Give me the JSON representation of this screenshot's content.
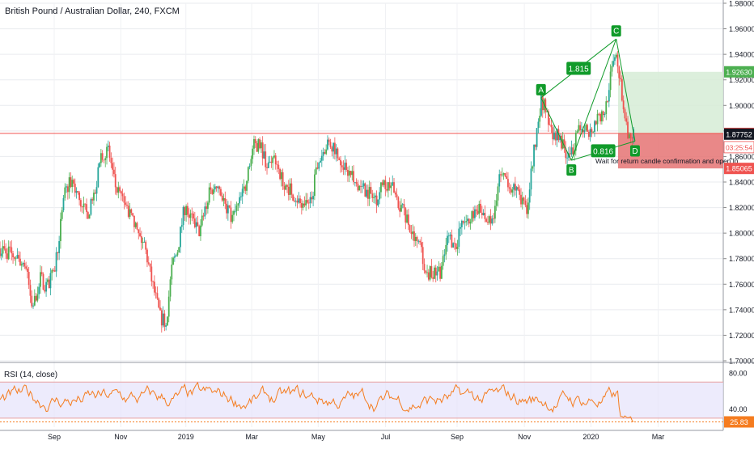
{
  "header": {
    "title": "British Pound / Australian Dollar, 240, FXCM"
  },
  "rsi": {
    "title": "RSI (14, close)",
    "upper": 70,
    "lower": 30,
    "last": 25.83,
    "axis_ticks": [
      "80.00",
      "40.00"
    ],
    "last_label": "25.83",
    "colors": {
      "line": "#f57c1f",
      "band": "#e6e3fb",
      "bound": "#e8a0a0"
    }
  },
  "chart_data": [
    {
      "type": "candlestick",
      "title": "British Pound / Australian Dollar, 240, FXCM",
      "x_ticks": [
        "Sep",
        "Nov",
        "2019",
        "Mar",
        "May",
        "Jul",
        "Sep",
        "Nov",
        "2020",
        "Mar"
      ],
      "y_ticks": [
        "1.98000",
        "1.96000",
        "1.94000",
        "1.92000",
        "1.90000",
        "1.88000",
        "1.86000",
        "1.84000",
        "1.82000",
        "1.80000",
        "1.78000",
        "1.76000",
        "1.74000",
        "1.72000",
        "1.70000"
      ],
      "ylim": [
        1.7,
        1.98
      ],
      "grid": true,
      "price_path": [
        [
          0.0,
          1.788
        ],
        [
          0.02,
          1.782
        ],
        [
          0.035,
          1.775
        ],
        [
          0.045,
          1.74
        ],
        [
          0.055,
          1.765
        ],
        [
          0.065,
          1.758
        ],
        [
          0.075,
          1.77
        ],
        [
          0.09,
          1.832
        ],
        [
          0.1,
          1.842
        ],
        [
          0.11,
          1.825
        ],
        [
          0.12,
          1.815
        ],
        [
          0.13,
          1.826
        ],
        [
          0.14,
          1.862
        ],
        [
          0.15,
          1.865
        ],
        [
          0.16,
          1.835
        ],
        [
          0.175,
          1.82
        ],
        [
          0.19,
          1.8
        ],
        [
          0.2,
          1.79
        ],
        [
          0.21,
          1.762
        ],
        [
          0.222,
          1.733
        ],
        [
          0.23,
          1.732
        ],
        [
          0.238,
          1.775
        ],
        [
          0.245,
          1.785
        ],
        [
          0.255,
          1.82
        ],
        [
          0.265,
          1.812
        ],
        [
          0.275,
          1.8
        ],
        [
          0.29,
          1.832
        ],
        [
          0.3,
          1.84
        ],
        [
          0.31,
          1.825
        ],
        [
          0.32,
          1.81
        ],
        [
          0.33,
          1.822
        ],
        [
          0.34,
          1.838
        ],
        [
          0.35,
          1.868
        ],
        [
          0.36,
          1.87
        ],
        [
          0.37,
          1.852
        ],
        [
          0.38,
          1.86
        ],
        [
          0.39,
          1.842
        ],
        [
          0.4,
          1.835
        ],
        [
          0.41,
          1.828
        ],
        [
          0.42,
          1.818
        ],
        [
          0.43,
          1.826
        ],
        [
          0.44,
          1.855
        ],
        [
          0.45,
          1.868
        ],
        [
          0.46,
          1.87
        ],
        [
          0.47,
          1.858
        ],
        [
          0.48,
          1.85
        ],
        [
          0.49,
          1.84
        ],
        [
          0.5,
          1.835
        ],
        [
          0.51,
          1.832
        ],
        [
          0.52,
          1.826
        ],
        [
          0.53,
          1.84
        ],
        [
          0.54,
          1.838
        ],
        [
          0.55,
          1.825
        ],
        [
          0.56,
          1.815
        ],
        [
          0.57,
          1.798
        ],
        [
          0.58,
          1.79
        ],
        [
          0.59,
          1.77
        ],
        [
          0.6,
          1.767
        ],
        [
          0.61,
          1.77
        ],
        [
          0.62,
          1.798
        ],
        [
          0.63,
          1.79
        ],
        [
          0.64,
          1.808
        ],
        [
          0.65,
          1.81
        ],
        [
          0.66,
          1.82
        ],
        [
          0.67,
          1.812
        ],
        [
          0.68,
          1.805
        ],
        [
          0.69,
          1.845
        ],
        [
          0.7,
          1.842
        ],
        [
          0.71,
          1.835
        ],
        [
          0.72,
          1.828
        ],
        [
          0.728,
          1.815
        ],
        [
          0.735,
          1.85
        ],
        [
          0.742,
          1.88
        ],
        [
          0.748,
          1.905
        ],
        [
          0.755,
          1.895
        ],
        [
          0.762,
          1.88
        ],
        [
          0.77,
          1.878
        ],
        [
          0.778,
          1.868
        ],
        [
          0.788,
          1.858
        ],
        [
          0.795,
          1.872
        ],
        [
          0.805,
          1.885
        ],
        [
          0.815,
          1.878
        ],
        [
          0.825,
          1.89
        ],
        [
          0.835,
          1.892
        ],
        [
          0.842,
          1.915
        ],
        [
          0.848,
          1.935
        ],
        [
          0.852,
          1.945
        ],
        [
          0.857,
          1.92
        ],
        [
          0.862,
          1.9
        ],
        [
          0.868,
          1.88
        ],
        [
          0.872,
          1.872
        ],
        [
          0.876,
          1.8775
        ]
      ],
      "pattern": {
        "points": [
          {
            "label": "A",
            "t": 0.748,
            "price": 1.906
          },
          {
            "label": "B",
            "t": 0.79,
            "price": 1.857
          },
          {
            "label": "C",
            "t": 0.852,
            "price": 1.952
          },
          {
            "label": "D",
            "t": 0.878,
            "price": 1.872
          }
        ],
        "ratios": [
          {
            "value": "1.815",
            "legs": [
              "A",
              "C"
            ]
          },
          {
            "value": "0.816",
            "legs": [
              "B",
              "D"
            ]
          }
        ],
        "color": "#109b2a"
      },
      "position": {
        "entry": 1.87807,
        "target": 1.9263,
        "stop": 1.85065,
        "current": 1.87752,
        "countdown": "03:25:54",
        "note": "Wait for return candle confirmation and open lo",
        "colors": {
          "profit": "#d6ecd6",
          "loss": "#e57373",
          "entry": "#f05350",
          "target_tag": "#4caf50",
          "stop_tag": "#ef5350"
        }
      },
      "price_labels": {
        "target": "1.92630",
        "entry": "1.87807",
        "countdown": "03:25:54",
        "current": "1.87752",
        "stop": "1.85065"
      },
      "candle_colors": {
        "up": "#26a69a",
        "up_alt": "#4caf50",
        "down": "#ef5350"
      }
    },
    {
      "type": "line",
      "title": "RSI (14, close)",
      "ylim": [
        20,
        90
      ],
      "series": [
        {
          "name": "RSI (14, close)",
          "last": 25.83
        }
      ]
    }
  ]
}
